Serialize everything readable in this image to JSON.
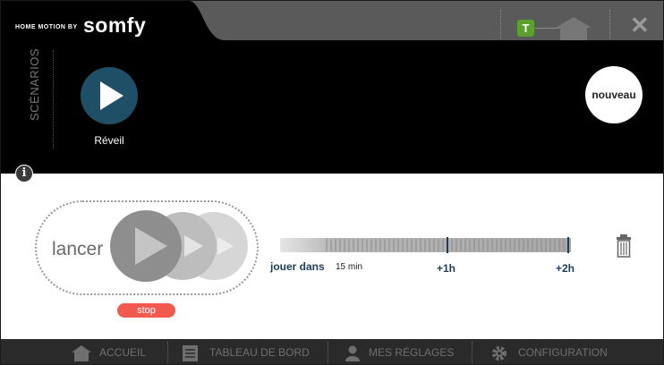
{
  "header": {
    "brand_small": "HOME MOTION BY",
    "brand_name": "somfy",
    "t_badge": "T",
    "close_glyph": "✕",
    "icons": [
      "t-badge-icon",
      "home-icon",
      "close-icon"
    ],
    "colors": {
      "t_badge": "#5aa02c",
      "bar": "#5a5a5a"
    }
  },
  "scenarios": {
    "section_label": "SCÉNARIOS",
    "items": [
      {
        "label": "Réveil",
        "icon": "play-icon",
        "color": "#1f4f66"
      }
    ],
    "new_button_label": "nouveau",
    "info_glyph": "i"
  },
  "detail": {
    "launch_label": "lancer",
    "stop_label": "stop",
    "play_in_label": "jouer dans",
    "play_in_value": "15 min",
    "ticks": [
      "+1h",
      "+2h"
    ],
    "timeline_progress": 0.0,
    "colors": {
      "stop": "#f25a4f",
      "accent": "#1d3d57"
    }
  },
  "footer": {
    "items": [
      {
        "label": "ACCUEIL",
        "icon": "home-icon"
      },
      {
        "label": "TABLEAU DE BORD",
        "icon": "dashboard-icon"
      },
      {
        "label": "MES RÉGLAGES",
        "icon": "user-icon"
      },
      {
        "label": "CONFIGURATION",
        "icon": "gear-icon"
      }
    ]
  }
}
